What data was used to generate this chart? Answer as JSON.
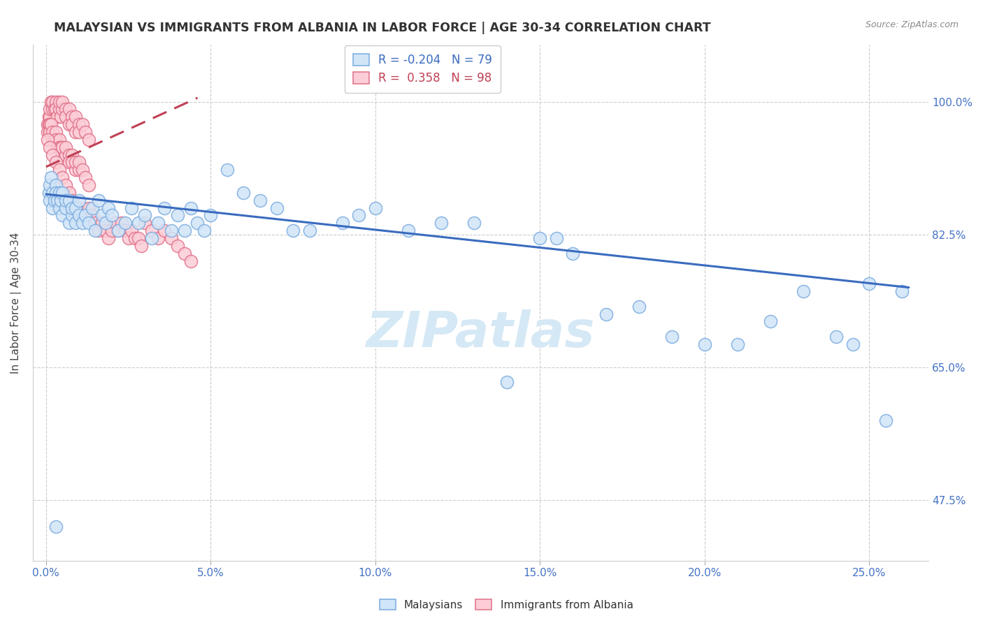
{
  "title": "MALAYSIAN VS IMMIGRANTS FROM ALBANIA IN LABOR FORCE | AGE 30-34 CORRELATION CHART",
  "source": "Source: ZipAtlas.com",
  "xlabel_values": [
    0.0,
    0.05,
    0.1,
    0.15,
    0.2,
    0.25
  ],
  "xlabel_labels": [
    "0.0%",
    "5.0%",
    "10.0%",
    "15.0%",
    "20.0%",
    "25.0%"
  ],
  "ylabel_values": [
    0.475,
    0.65,
    0.825,
    1.0
  ],
  "ylabel_labels": [
    "47.5%",
    "65.0%",
    "82.5%",
    "100.0%"
  ],
  "ylabel_label": "In Labor Force | Age 30-34",
  "xlim": [
    -0.004,
    0.268
  ],
  "ylim": [
    0.395,
    1.075
  ],
  "legend_r_blue": "-0.204",
  "legend_n_blue": "79",
  "legend_r_pink": "0.358",
  "legend_n_pink": "98",
  "blue_fc": "#d0e5f7",
  "blue_ec": "#7aabe0",
  "blue_line": "#3a6bbf",
  "pink_fc": "#fccdd6",
  "pink_ec": "#e07088",
  "pink_line": "#c04055",
  "watermark_color": "#d5e8f5",
  "bg": "#ffffff",
  "blue_x": [
    0.0008,
    0.001,
    0.0012,
    0.0015,
    0.002,
    0.002,
    0.0025,
    0.003,
    0.003,
    0.0035,
    0.004,
    0.004,
    0.0045,
    0.005,
    0.005,
    0.006,
    0.006,
    0.007,
    0.007,
    0.008,
    0.008,
    0.009,
    0.009,
    0.01,
    0.01,
    0.011,
    0.012,
    0.013,
    0.014,
    0.015,
    0.016,
    0.017,
    0.018,
    0.019,
    0.02,
    0.022,
    0.024,
    0.026,
    0.028,
    0.03,
    0.032,
    0.034,
    0.036,
    0.038,
    0.04,
    0.042,
    0.044,
    0.046,
    0.048,
    0.05,
    0.055,
    0.06,
    0.065,
    0.07,
    0.075,
    0.08,
    0.09,
    0.095,
    0.1,
    0.11,
    0.12,
    0.13,
    0.14,
    0.15,
    0.155,
    0.16,
    0.17,
    0.18,
    0.19,
    0.2,
    0.21,
    0.22,
    0.23,
    0.24,
    0.245,
    0.25,
    0.255,
    0.26,
    0.003
  ],
  "blue_y": [
    0.88,
    0.89,
    0.87,
    0.9,
    0.86,
    0.88,
    0.87,
    0.89,
    0.88,
    0.87,
    0.88,
    0.86,
    0.87,
    0.85,
    0.88,
    0.86,
    0.87,
    0.84,
    0.87,
    0.85,
    0.86,
    0.84,
    0.86,
    0.85,
    0.87,
    0.84,
    0.85,
    0.84,
    0.86,
    0.83,
    0.87,
    0.85,
    0.84,
    0.86,
    0.85,
    0.83,
    0.84,
    0.86,
    0.84,
    0.85,
    0.82,
    0.84,
    0.86,
    0.83,
    0.85,
    0.83,
    0.86,
    0.84,
    0.83,
    0.85,
    0.91,
    0.88,
    0.87,
    0.86,
    0.83,
    0.83,
    0.84,
    0.85,
    0.86,
    0.83,
    0.84,
    0.84,
    0.63,
    0.82,
    0.82,
    0.8,
    0.72,
    0.73,
    0.69,
    0.68,
    0.68,
    0.71,
    0.75,
    0.69,
    0.68,
    0.76,
    0.58,
    0.75,
    0.44
  ],
  "pink_x": [
    0.0005,
    0.0008,
    0.001,
    0.001,
    0.0012,
    0.0015,
    0.002,
    0.002,
    0.0025,
    0.003,
    0.003,
    0.0035,
    0.004,
    0.004,
    0.0045,
    0.005,
    0.005,
    0.006,
    0.006,
    0.007,
    0.007,
    0.008,
    0.008,
    0.009,
    0.009,
    0.01,
    0.01,
    0.011,
    0.012,
    0.013,
    0.0005,
    0.0008,
    0.001,
    0.001,
    0.0012,
    0.0015,
    0.002,
    0.002,
    0.0025,
    0.003,
    0.003,
    0.0035,
    0.004,
    0.004,
    0.0045,
    0.005,
    0.005,
    0.006,
    0.006,
    0.007,
    0.007,
    0.008,
    0.008,
    0.009,
    0.009,
    0.01,
    0.01,
    0.011,
    0.012,
    0.013,
    0.0005,
    0.001,
    0.002,
    0.003,
    0.004,
    0.005,
    0.006,
    0.007,
    0.008,
    0.009,
    0.01,
    0.011,
    0.012,
    0.013,
    0.014,
    0.015,
    0.016,
    0.017,
    0.018,
    0.019,
    0.02,
    0.021,
    0.022,
    0.023,
    0.024,
    0.025,
    0.026,
    0.027,
    0.028,
    0.029,
    0.03,
    0.032,
    0.034,
    0.036,
    0.038,
    0.04,
    0.042,
    0.044
  ],
  "pink_y": [
    0.97,
    0.98,
    0.97,
    0.98,
    0.99,
    1.0,
    0.99,
    1.0,
    0.99,
    1.0,
    0.99,
    0.98,
    0.99,
    1.0,
    0.98,
    0.99,
    1.0,
    0.99,
    0.98,
    0.97,
    0.99,
    0.98,
    0.97,
    0.96,
    0.98,
    0.97,
    0.96,
    0.97,
    0.96,
    0.95,
    0.96,
    0.97,
    0.96,
    0.97,
    0.96,
    0.97,
    0.95,
    0.96,
    0.95,
    0.96,
    0.95,
    0.94,
    0.95,
    0.94,
    0.94,
    0.93,
    0.94,
    0.93,
    0.94,
    0.93,
    0.92,
    0.93,
    0.92,
    0.91,
    0.92,
    0.91,
    0.92,
    0.91,
    0.9,
    0.89,
    0.95,
    0.94,
    0.93,
    0.92,
    0.91,
    0.9,
    0.89,
    0.88,
    0.87,
    0.86,
    0.85,
    0.86,
    0.85,
    0.86,
    0.85,
    0.84,
    0.83,
    0.84,
    0.83,
    0.82,
    0.83,
    0.84,
    0.83,
    0.84,
    0.83,
    0.82,
    0.83,
    0.82,
    0.82,
    0.81,
    0.84,
    0.83,
    0.82,
    0.83,
    0.82,
    0.81,
    0.8,
    0.79
  ],
  "blue_trendline_x": [
    0.0,
    0.262
  ],
  "blue_trendline_y": [
    0.878,
    0.755
  ],
  "pink_trendline_x": [
    0.0,
    0.046
  ],
  "pink_trendline_y": [
    0.914,
    1.005
  ]
}
